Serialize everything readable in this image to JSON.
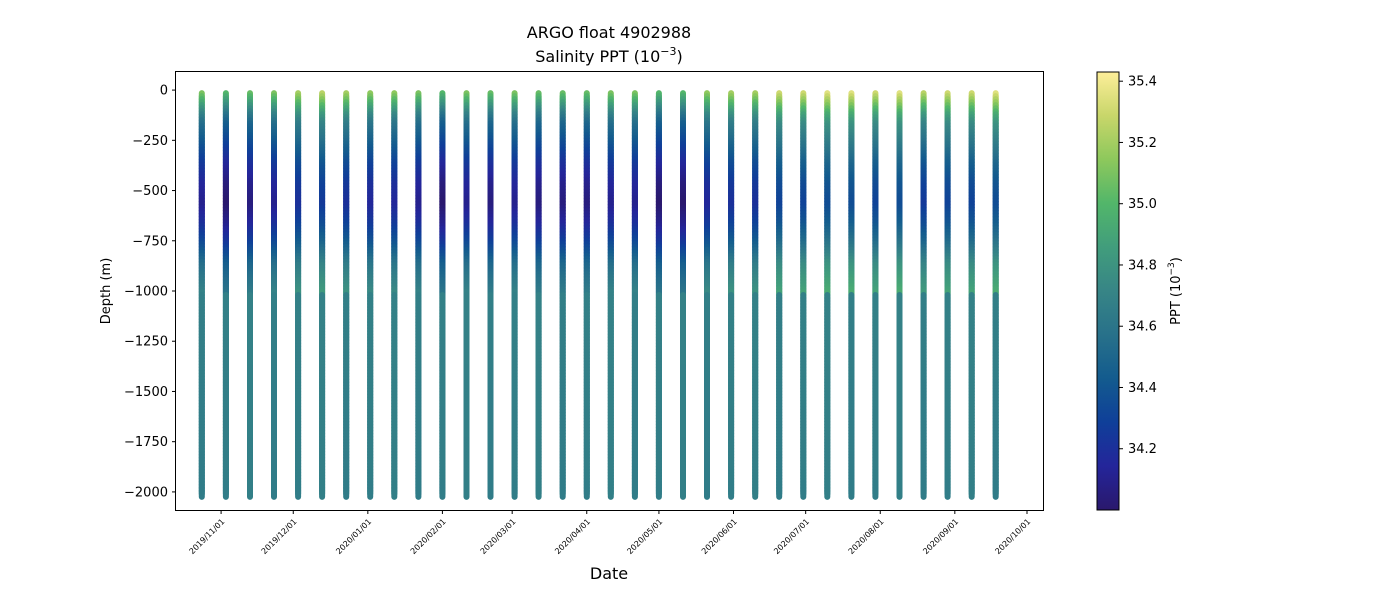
{
  "chart_data": {
    "type": "scatter",
    "title": "ARGO float 4902988",
    "subtitle": "Salinity PPT (10−3)",
    "subtitle_base": "Salinity PPT (10",
    "subtitle_exp": "−3",
    "subtitle_close": ")",
    "xlabel": "Date",
    "ylabel": "Depth (m)",
    "x_ticks": [
      "2019/11/01",
      "2019/12/01",
      "2020/01/01",
      "2020/02/01",
      "2020/03/01",
      "2020/04/01",
      "2020/05/01",
      "2020/06/01",
      "2020/07/01",
      "2020/08/01",
      "2020/09/01",
      "2020/10/01"
    ],
    "x_range": [
      "2019/10/17",
      "2020/10/01"
    ],
    "y_ticks": [
      0,
      -250,
      -500,
      -750,
      -1000,
      -1250,
      -1500,
      -1750,
      -2000
    ],
    "y_tick_labels": [
      "0",
      "−250",
      "−500",
      "−750",
      "−1000",
      "−1250",
      "−1500",
      "−1750",
      "−2000"
    ],
    "ylim": [
      -2090,
      90
    ],
    "profile_dates": [
      "2019/10/24",
      "2019/11/03",
      "2019/11/13",
      "2019/11/23",
      "2019/12/03",
      "2019/12/13",
      "2019/12/23",
      "2020/01/02",
      "2020/01/12",
      "2020/01/22",
      "2020/02/01",
      "2020/02/11",
      "2020/02/21",
      "2020/03/02",
      "2020/03/12",
      "2020/03/22",
      "2020/04/01",
      "2020/04/11",
      "2020/04/21",
      "2020/05/01",
      "2020/05/11",
      "2020/05/21",
      "2020/05/31",
      "2020/06/10",
      "2020/06/20",
      "2020/06/30",
      "2020/07/10",
      "2020/07/20",
      "2020/07/30",
      "2020/08/09",
      "2020/08/19",
      "2020/08/29",
      "2020/09/08",
      "2020/09/18"
    ],
    "surface_salinity": [
      35.1,
      35.0,
      35.05,
      35.1,
      35.2,
      35.25,
      35.2,
      35.15,
      35.15,
      35.1,
      35.0,
      35.1,
      35.05,
      35.1,
      35.05,
      35.05,
      35.05,
      35.1,
      35.1,
      35.0,
      35.0,
      35.15,
      35.2,
      35.2,
      35.3,
      35.3,
      35.35,
      35.35,
      35.3,
      35.35,
      35.25,
      35.3,
      35.3,
      35.35
    ],
    "depth_profile": {
      "depth": [
        0,
        -50,
        -100,
        -150,
        -250,
        -350,
        -450,
        -550,
        -650,
        -750,
        -850,
        -1000,
        -1300,
        -1600,
        -2000
      ],
      "salinity_offset": [
        0,
        -0.2,
        -0.4,
        -0.55,
        -0.7,
        -0.85,
        -0.95,
        -1.0,
        -0.9,
        -0.75,
        -0.55,
        -0.4,
        -0.2,
        -0.1,
        -0.1
      ]
    },
    "colorbar": {
      "label": "PPT (10−3)",
      "label_base": "PPT (10",
      "label_exp": "−3",
      "label_close": ")",
      "range": [
        34.0,
        35.43
      ],
      "ticks": [
        34.2,
        34.4,
        34.6,
        34.8,
        35.0,
        35.2,
        35.4
      ],
      "tick_labels": [
        "34.2",
        "34.4",
        "34.6",
        "34.8",
        "35.0",
        "35.2",
        "35.4"
      ],
      "colormap": "haline",
      "stops": [
        "#2a186c",
        "#24259a",
        "#0f3f99",
        "#135b8e",
        "#28718a",
        "#378586",
        "#419d7c",
        "#52b66a",
        "#8dc85c",
        "#c8d66a",
        "#fdee99"
      ]
    },
    "grid": false
  }
}
